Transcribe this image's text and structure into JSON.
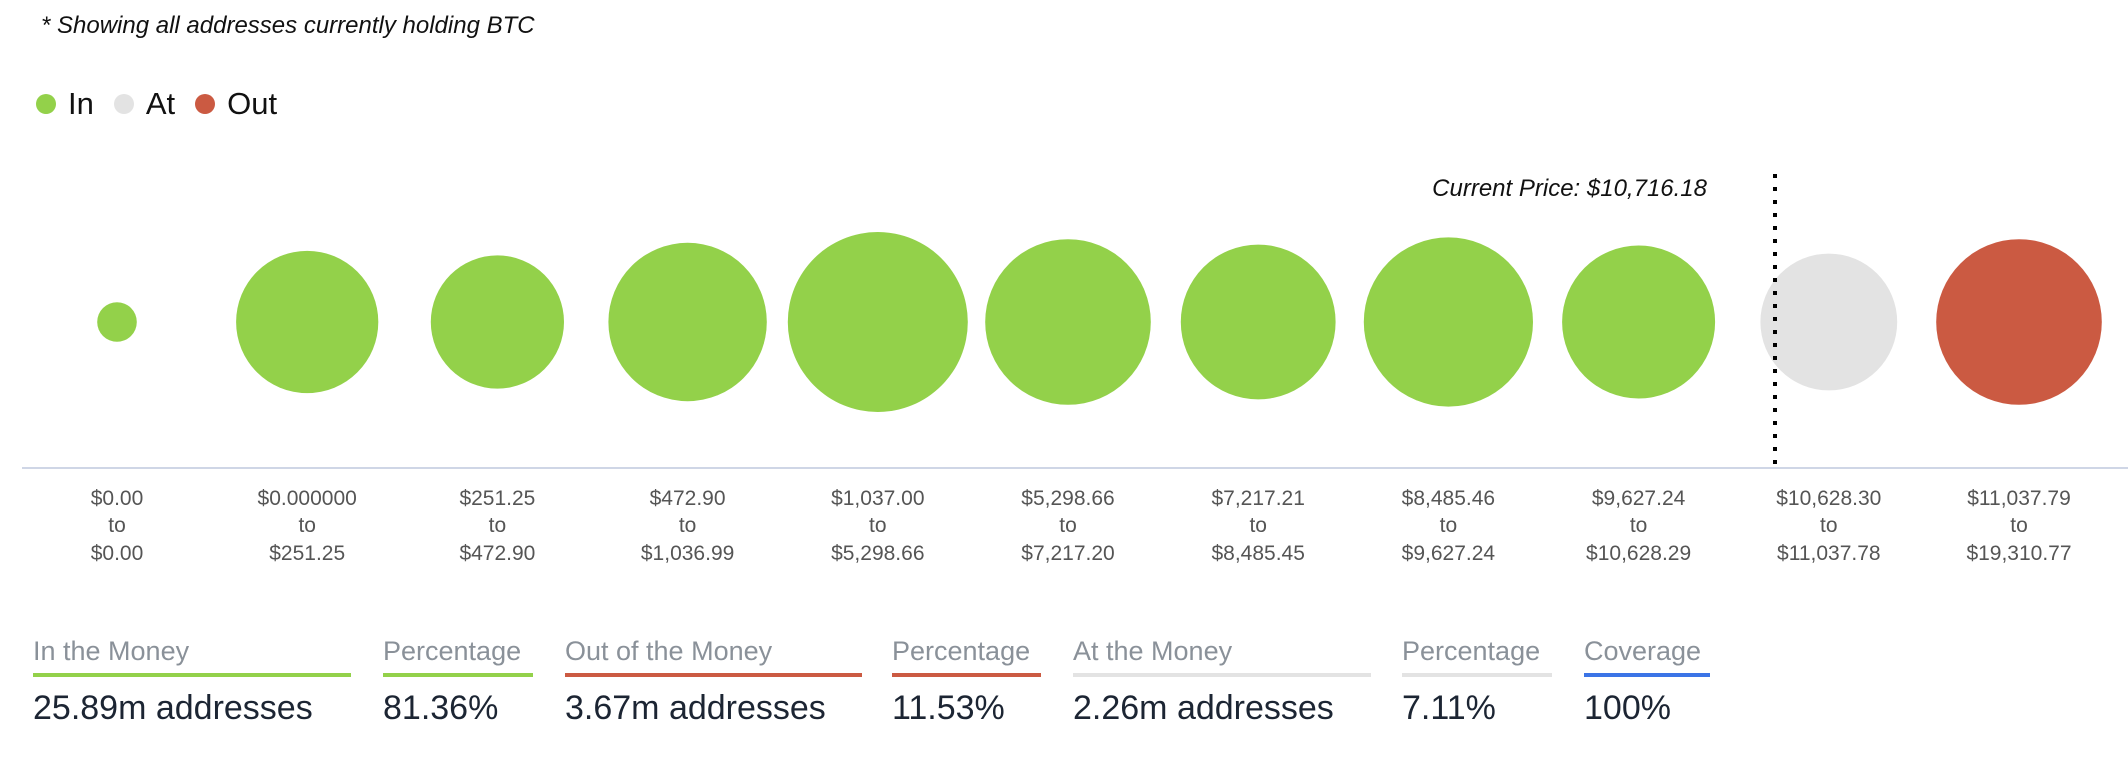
{
  "note": "* Showing all addresses currently holding BTC",
  "legend": [
    {
      "label": "In",
      "color": "#93d14a"
    },
    {
      "label": "At",
      "color": "#e3e3e3"
    },
    {
      "label": "Out",
      "color": "#cb5a42"
    }
  ],
  "chart_data": {
    "type": "bubble",
    "current_price_label": "Current Price: $10,716.18",
    "current_price": 10716.18,
    "grid": false,
    "legend_placement": "top-left",
    "bins": [
      {
        "from": "$0.00",
        "to": "$0.00",
        "status": "In",
        "relative_size": 0.22
      },
      {
        "from": "$0.000000",
        "to": "$251.25",
        "status": "In",
        "relative_size": 0.79
      },
      {
        "from": "$251.25",
        "to": "$472.90",
        "status": "In",
        "relative_size": 0.74
      },
      {
        "from": "$472.90",
        "to": "$1,036.99",
        "status": "In",
        "relative_size": 0.88
      },
      {
        "from": "$1,037.00",
        "to": "$5,298.66",
        "status": "In",
        "relative_size": 1.0
      },
      {
        "from": "$5,298.66",
        "to": "$7,217.20",
        "status": "In",
        "relative_size": 0.92
      },
      {
        "from": "$7,217.21",
        "to": "$8,485.45",
        "status": "In",
        "relative_size": 0.86
      },
      {
        "from": "$8,485.46",
        "to": "$9,627.24",
        "status": "In",
        "relative_size": 0.94
      },
      {
        "from": "$9,627.24",
        "to": "$10,628.29",
        "status": "In",
        "relative_size": 0.85
      },
      {
        "from": "$10,628.30",
        "to": "$11,037.78",
        "status": "At",
        "relative_size": 0.76
      },
      {
        "from": "$11,037.79",
        "to": "$19,310.77",
        "status": "Out",
        "relative_size": 0.92
      }
    ],
    "range_separator": "to"
  },
  "stats": [
    {
      "label": "In the Money",
      "value": "25.89m addresses",
      "color": "#93d14a"
    },
    {
      "label": "Percentage",
      "value": "81.36%",
      "color": "#93d14a"
    },
    {
      "label": "Out of the Money",
      "value": "3.67m addresses",
      "color": "#cb5a42"
    },
    {
      "label": "Percentage",
      "value": "11.53%",
      "color": "#cb5a42"
    },
    {
      "label": "At the Money",
      "value": "2.26m addresses",
      "color": "#e3e3e3"
    },
    {
      "label": "Percentage",
      "value": "7.11%",
      "color": "#e3e3e3"
    },
    {
      "label": "Coverage",
      "value": "100%",
      "color": "#3b74e6"
    }
  ]
}
